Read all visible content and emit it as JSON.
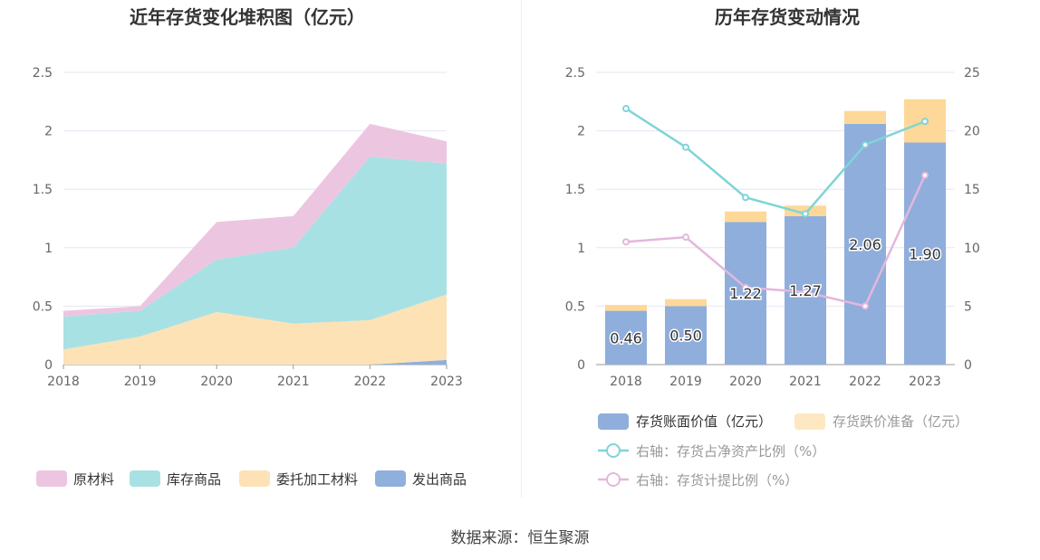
{
  "source_text": "数据来源：恒生聚源",
  "colors": {
    "raw_material": "#ecc6e0",
    "finished_goods": "#a8e1e3",
    "consigned_processing": "#fde2b5",
    "goods_shipped": "#8fafdc",
    "book_value_bar": "#8faedc",
    "impairment_bar": "#fed898",
    "ratio_net_assets_line": "#80d4d6",
    "provision_ratio_line": "#e4b7dc",
    "axis_text": "#666666",
    "grid": "#e6e6f2"
  },
  "chart_data": [
    {
      "type": "area",
      "stacked": true,
      "title": "近年存货变化堆积图（亿元）",
      "categories": [
        "2018",
        "2019",
        "2020",
        "2021",
        "2022",
        "2023"
      ],
      "ylim": [
        0,
        2.5
      ],
      "y_ticks": [
        "0",
        "0.5",
        "1",
        "1.5",
        "2",
        "2.5"
      ],
      "grid": true,
      "legend_position": "bottom",
      "series": [
        {
          "name": "原材料",
          "values": [
            0.05,
            0.04,
            0.32,
            0.27,
            0.28,
            0.19
          ]
        },
        {
          "name": "库存商品",
          "values": [
            0.28,
            0.22,
            0.45,
            0.65,
            1.4,
            1.12
          ]
        },
        {
          "name": "委托加工材料",
          "values": [
            0.13,
            0.24,
            0.45,
            0.35,
            0.38,
            0.56
          ]
        },
        {
          "name": "发出商品",
          "values": [
            0.0,
            0.0,
            0.0,
            0.0,
            0.0,
            0.04
          ]
        }
      ]
    },
    {
      "type": "bar",
      "stacked": true,
      "title": "历年存货变动情况",
      "categories": [
        "2018",
        "2019",
        "2020",
        "2021",
        "2022",
        "2023"
      ],
      "ylim": [
        0,
        2.5
      ],
      "y_ticks": [
        "0",
        "0.5",
        "1",
        "1.5",
        "2",
        "2.5"
      ],
      "y2lim": [
        0,
        25
      ],
      "y2_ticks": [
        "0",
        "5",
        "10",
        "15",
        "20",
        "25"
      ],
      "grid": true,
      "legend_position": "bottom",
      "series": [
        {
          "name": "存货账面价值（亿元）",
          "kind": "bar",
          "axis": "left",
          "values": [
            0.46,
            0.5,
            1.22,
            1.27,
            2.06,
            1.9
          ],
          "labels": [
            "0.46",
            "0.50",
            "1.22",
            "1.27",
            "2.06",
            "1.90"
          ]
        },
        {
          "name": "存货跌价准备（亿元）",
          "kind": "bar",
          "axis": "left",
          "values": [
            0.05,
            0.06,
            0.09,
            0.09,
            0.11,
            0.37
          ]
        },
        {
          "name": "右轴：存货占净资产比例（%）",
          "kind": "line",
          "axis": "right",
          "values": [
            21.9,
            18.6,
            14.3,
            12.9,
            18.8,
            20.8
          ]
        },
        {
          "name": "右轴：存货计提比例（%）",
          "kind": "line",
          "axis": "right",
          "values": [
            10.5,
            10.9,
            6.6,
            6.2,
            5.0,
            16.2
          ]
        }
      ]
    }
  ]
}
